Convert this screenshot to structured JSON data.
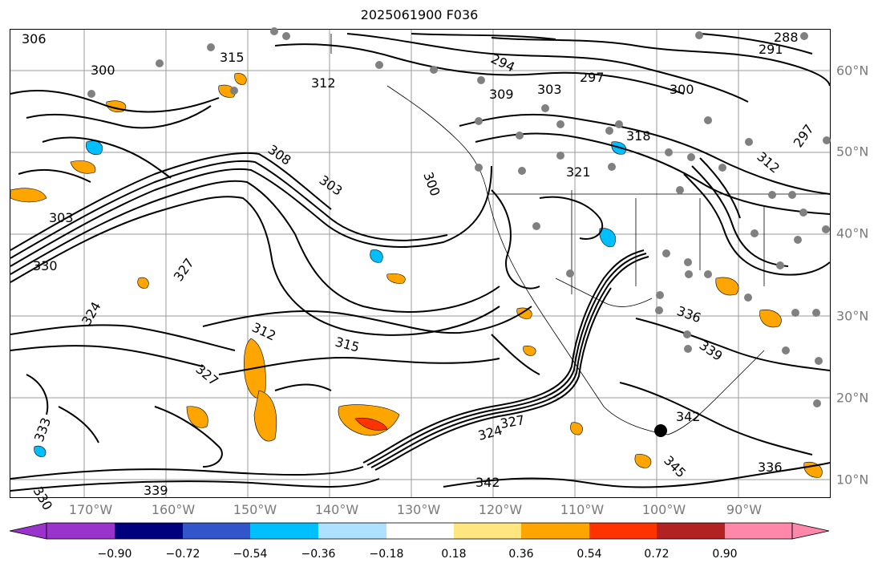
{
  "title": "2025061900 F036",
  "map": {
    "lon_ticks": [
      "170°W",
      "160°W",
      "150°W",
      "140°W",
      "130°W",
      "120°W",
      "110°W",
      "100°W",
      "90°W"
    ],
    "lat_ticks": [
      "60°N",
      "50°N",
      "40°N",
      "30°N",
      "20°N",
      "10°N"
    ],
    "contour_labels": [
      "306",
      "288",
      "291",
      "300",
      "294",
      "297",
      "312",
      "303",
      "309",
      "318",
      "300",
      "297",
      "321",
      "315",
      "308",
      "303",
      "312",
      "303",
      "300",
      "330",
      "327",
      "324",
      "315",
      "312",
      "336",
      "339",
      "327",
      "342",
      "345",
      "342",
      "336",
      "339",
      "330",
      "333",
      "324",
      "327"
    ]
  },
  "colorbar": {
    "labels": [
      "−0.90",
      "−0.72",
      "−0.54",
      "−0.36",
      "−0.18",
      "0.18",
      "0.36",
      "0.54",
      "0.72",
      "0.90"
    ],
    "colors": [
      "#9a33cc",
      "#00007f",
      "#3355cc",
      "#00bfff",
      "#aee0ff",
      "#ffffff",
      "#ffe680",
      "#ffa500",
      "#ff3300",
      "#b22222",
      "#ff88aa"
    ]
  }
}
